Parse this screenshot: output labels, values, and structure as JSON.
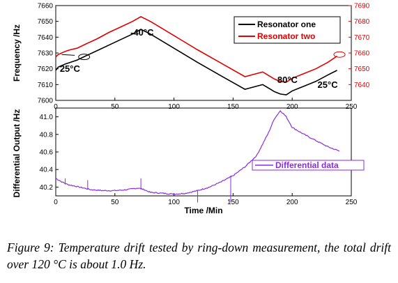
{
  "chart_data": [
    {
      "type": "line",
      "xlabel": "",
      "ylabel": "Frequency /Hz",
      "y2label": "",
      "xlim": [
        0,
        250
      ],
      "ylim": [
        7600,
        7660
      ],
      "y2lim": [
        7630,
        7690
      ],
      "xticks": [
        "0",
        "50",
        "100",
        "150",
        "200",
        "250"
      ],
      "yticks": [
        "7600",
        "7610",
        "7620",
        "7630",
        "7640",
        "7650",
        "7660"
      ],
      "y2ticks": [
        "7640",
        "7650",
        "7660",
        "7670",
        "7680",
        "7690"
      ],
      "legend_position": "top-right",
      "series": [
        {
          "name": "Resonator one",
          "axis": "left",
          "color": "#000000",
          "x": [
            0,
            2,
            5,
            8,
            12,
            18,
            25,
            35,
            45,
            55,
            65,
            72,
            80,
            100,
            120,
            140,
            160,
            175,
            185,
            190,
            195,
            200,
            210,
            220,
            230,
            238
          ],
          "y": [
            7619,
            7621,
            7622,
            7623,
            7624,
            7625.5,
            7628,
            7631.5,
            7635,
            7638.5,
            7642,
            7645,
            7642,
            7633,
            7624,
            7615.5,
            7607,
            7610,
            7605.5,
            7604,
            7603.5,
            7606,
            7609,
            7612,
            7616,
            7619
          ]
        },
        {
          "name": "Resonator two",
          "axis": "right",
          "color": "#e00000",
          "x": [
            0,
            2,
            5,
            8,
            12,
            18,
            25,
            35,
            45,
            55,
            65,
            72,
            80,
            100,
            120,
            140,
            160,
            175,
            185,
            190,
            195,
            200,
            210,
            220,
            230,
            238
          ],
          "y": [
            7657.5,
            7659,
            7660,
            7661,
            7662,
            7663,
            7665.5,
            7669,
            7673,
            7676.5,
            7680,
            7683,
            7680,
            7671,
            7662,
            7653.5,
            7645,
            7648,
            7643.5,
            7642,
            7641.5,
            7644,
            7647,
            7650,
            7654,
            7658
          ]
        }
      ],
      "annotations": [
        {
          "text": "25°C",
          "x": 12,
          "y": 7618
        },
        {
          "text": "-40°C",
          "x": 73,
          "y": 7641
        },
        {
          "text": "80°C",
          "x": 196,
          "y": 7611
        },
        {
          "text": "25°C",
          "x": 230,
          "y": 7608
        }
      ]
    },
    {
      "type": "line",
      "xlabel": "Time /Min",
      "ylabel": "Differential Output /Hz",
      "xlim": [
        0,
        250
      ],
      "ylim": [
        40.1,
        41.1
      ],
      "xticks": [
        "0",
        "50",
        "100",
        "150",
        "200",
        "250"
      ],
      "yticks": [
        "40.2",
        "40.4",
        "40.6",
        "40.8",
        "41.0"
      ],
      "legend_position": "center-right",
      "series": [
        {
          "name": "Differential data",
          "color": "#8a2be2",
          "x": [
            0,
            5,
            10,
            20,
            30,
            40,
            50,
            60,
            70,
            75,
            80,
            90,
            100,
            110,
            120,
            130,
            140,
            150,
            160,
            170,
            180,
            185,
            190,
            195,
            200,
            210,
            220,
            230,
            240
          ],
          "y": [
            40.3,
            40.26,
            40.23,
            40.2,
            40.17,
            40.16,
            40.16,
            40.17,
            40.19,
            40.17,
            40.14,
            40.13,
            40.12,
            40.13,
            40.16,
            40.2,
            40.26,
            40.33,
            40.43,
            40.56,
            40.82,
            40.98,
            41.07,
            41.0,
            40.88,
            40.8,
            40.73,
            40.66,
            40.61
          ]
        }
      ]
    }
  ],
  "caption": "Figure 9: Temperature drift tested by ring-down measurement, the total drift over 120 °C is about 1.0 Hz."
}
